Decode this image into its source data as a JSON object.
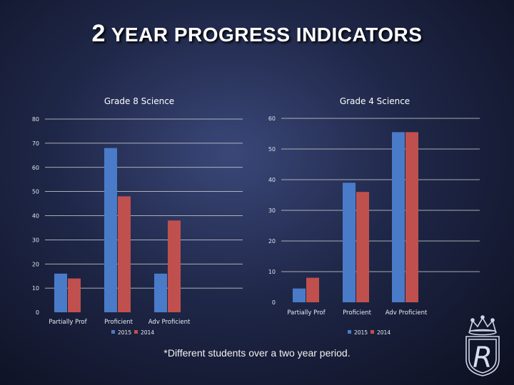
{
  "slide": {
    "title_number": "2",
    "title_text": "YEAR PROGRESS INDICATORS",
    "footnote": "*Different students over a two year period."
  },
  "logo": {
    "letter": "R",
    "name": "crown-crest-icon"
  },
  "colors": {
    "series_2015": "#4a7bc8",
    "series_2014": "#c0504d",
    "axis_text": "#dfe3ee",
    "gridline": "#d9d9d9"
  },
  "chart_data": [
    {
      "type": "bar",
      "title": "Grade 8 Science",
      "categories": [
        "Partially Prof",
        "Proficient",
        "Adv Proficient"
      ],
      "series": [
        {
          "name": "2015",
          "values": [
            16,
            68,
            16
          ]
        },
        {
          "name": "2014",
          "values": [
            14,
            48,
            38
          ]
        }
      ],
      "ylim": [
        0,
        80
      ],
      "yticks": [
        0,
        10,
        20,
        30,
        40,
        50,
        60,
        70,
        80
      ],
      "grid": true,
      "legend": "bottom"
    },
    {
      "type": "bar",
      "title": "Grade 4 Science",
      "categories": [
        "Partially Prof",
        "Proficient",
        "Adv Proficient"
      ],
      "series": [
        {
          "name": "2015",
          "values": [
            4.5,
            39,
            55.5
          ]
        },
        {
          "name": "2014",
          "values": [
            8,
            36,
            55.5
          ]
        }
      ],
      "ylim": [
        0,
        60
      ],
      "yticks": [
        0,
        10,
        20,
        30,
        40,
        50,
        60
      ],
      "grid": true,
      "legend": "bottom"
    }
  ]
}
